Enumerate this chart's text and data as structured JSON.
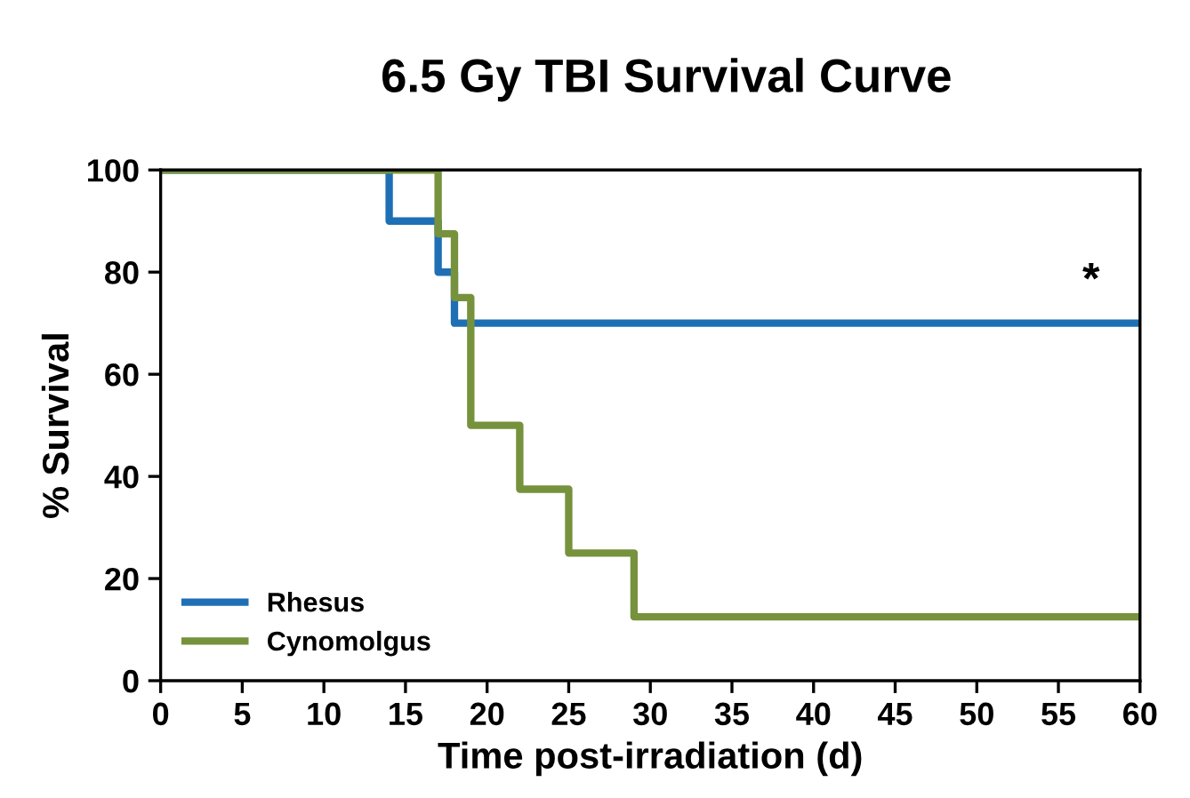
{
  "chart_data": {
    "type": "step",
    "title": "6.5 Gy TBI Survival Curve",
    "xlabel": "Time post-irradiation (d)",
    "ylabel": "% Survival",
    "series": [
      {
        "name": "Rhesus",
        "color": "#1f6fb5",
        "x": [
          0,
          14,
          17,
          18,
          60
        ],
        "values": [
          100,
          90,
          80,
          70,
          70
        ]
      },
      {
        "name": "Cynomolgus",
        "color": "#76923c",
        "x": [
          0,
          17,
          18,
          19,
          22,
          25,
          29,
          60
        ],
        "values": [
          100,
          87.5,
          75,
          50,
          37.5,
          25,
          12.5,
          12.5
        ]
      }
    ],
    "annotations": [
      "*"
    ],
    "xlim": [
      0,
      60
    ],
    "xticks": [
      0,
      5,
      10,
      15,
      20,
      25,
      30,
      35,
      40,
      45,
      50,
      55,
      60
    ],
    "ylim": [
      0,
      100
    ],
    "yticks": [
      0,
      20,
      40,
      60,
      80,
      100
    ],
    "grid": false,
    "legend": "bottom left"
  }
}
